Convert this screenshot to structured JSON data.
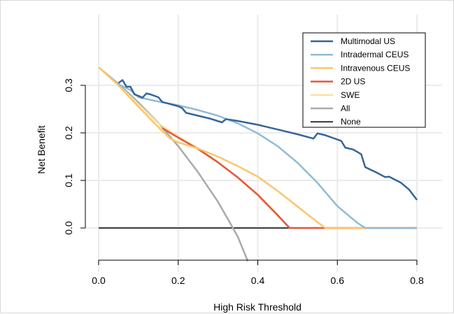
{
  "chart_data": {
    "type": "line",
    "title": "",
    "xlabel": "High Risk Threshold",
    "ylabel": "Net Benefit",
    "xlim": [
      0.0,
      0.8
    ],
    "ylim": [
      -0.07,
      0.34
    ],
    "xticks": [
      "0.0",
      "0.2",
      "0.4",
      "0.6",
      "0.8"
    ],
    "yticks": [
      "0.0",
      "0.1",
      "0.2",
      "0.3"
    ],
    "grid": true,
    "legend_position": "top-right",
    "series": [
      {
        "name": "Multimodal US",
        "color": "#35659a",
        "points": [
          [
            0.05,
            0.305
          ],
          [
            0.06,
            0.311
          ],
          [
            0.07,
            0.297
          ],
          [
            0.08,
            0.297
          ],
          [
            0.09,
            0.281
          ],
          [
            0.1,
            0.278
          ],
          [
            0.11,
            0.274
          ],
          [
            0.12,
            0.283
          ],
          [
            0.13,
            0.281
          ],
          [
            0.15,
            0.275
          ],
          [
            0.16,
            0.265
          ],
          [
            0.2,
            0.256
          ],
          [
            0.21,
            0.252
          ],
          [
            0.22,
            0.242
          ],
          [
            0.26,
            0.234
          ],
          [
            0.28,
            0.23
          ],
          [
            0.31,
            0.222
          ],
          [
            0.32,
            0.229
          ],
          [
            0.35,
            0.225
          ],
          [
            0.4,
            0.217
          ],
          [
            0.45,
            0.207
          ],
          [
            0.5,
            0.197
          ],
          [
            0.54,
            0.188
          ],
          [
            0.55,
            0.199
          ],
          [
            0.57,
            0.195
          ],
          [
            0.6,
            0.186
          ],
          [
            0.61,
            0.183
          ],
          [
            0.62,
            0.169
          ],
          [
            0.64,
            0.165
          ],
          [
            0.66,
            0.155
          ],
          [
            0.67,
            0.128
          ],
          [
            0.7,
            0.116
          ],
          [
            0.72,
            0.107
          ],
          [
            0.73,
            0.108
          ],
          [
            0.76,
            0.095
          ],
          [
            0.78,
            0.081
          ],
          [
            0.8,
            0.059
          ]
        ]
      },
      {
        "name": "Intradermal CEUS",
        "color": "#8fbcd6",
        "points": [
          [
            0.05,
            0.302
          ],
          [
            0.08,
            0.29
          ],
          [
            0.1,
            0.275
          ],
          [
            0.15,
            0.266
          ],
          [
            0.2,
            0.258
          ],
          [
            0.25,
            0.248
          ],
          [
            0.3,
            0.236
          ],
          [
            0.35,
            0.22
          ],
          [
            0.4,
            0.199
          ],
          [
            0.45,
            0.172
          ],
          [
            0.5,
            0.137
          ],
          [
            0.55,
            0.095
          ],
          [
            0.6,
            0.046
          ],
          [
            0.65,
            0.011
          ],
          [
            0.67,
            0.0
          ],
          [
            0.8,
            0.0
          ]
        ]
      },
      {
        "name": "Intravenous CEUS",
        "color": "#fbc66b",
        "points": [
          [
            0.0,
            0.338
          ],
          [
            0.05,
            0.3
          ],
          [
            0.1,
            0.255
          ],
          [
            0.15,
            0.212
          ],
          [
            0.18,
            0.188
          ],
          [
            0.2,
            0.18
          ],
          [
            0.25,
            0.167
          ],
          [
            0.3,
            0.15
          ],
          [
            0.35,
            0.13
          ],
          [
            0.4,
            0.108
          ],
          [
            0.45,
            0.078
          ],
          [
            0.5,
            0.045
          ],
          [
            0.55,
            0.012
          ],
          [
            0.57,
            0.0
          ],
          [
            0.8,
            0.0
          ]
        ]
      },
      {
        "name": "2D US",
        "color": "#e2583f",
        "points": [
          [
            0.16,
            0.21
          ],
          [
            0.2,
            0.19
          ],
          [
            0.25,
            0.166
          ],
          [
            0.3,
            0.138
          ],
          [
            0.35,
            0.106
          ],
          [
            0.4,
            0.07
          ],
          [
            0.45,
            0.027
          ],
          [
            0.48,
            0.0
          ],
          [
            0.8,
            0.0
          ]
        ]
      },
      {
        "name": "SWE",
        "color": "#fde0a2",
        "points": [
          [
            0.0,
            0.338
          ],
          [
            0.05,
            0.3
          ],
          [
            0.1,
            0.26
          ],
          [
            0.15,
            0.22
          ],
          [
            0.2,
            0.193
          ],
          [
            0.25,
            0.168
          ],
          [
            0.3,
            0.139
          ],
          [
            0.35,
            0.106
          ],
          [
            0.4,
            0.068
          ],
          [
            0.45,
            0.025
          ],
          [
            0.48,
            0.0
          ],
          [
            0.8,
            0.0
          ]
        ]
      },
      {
        "name": "All",
        "color": "#aaaaaa",
        "points": [
          [
            0.0,
            0.338
          ],
          [
            0.05,
            0.303
          ],
          [
            0.1,
            0.264
          ],
          [
            0.15,
            0.221
          ],
          [
            0.2,
            0.172
          ],
          [
            0.25,
            0.117
          ],
          [
            0.3,
            0.055
          ],
          [
            0.33,
            0.011
          ],
          [
            0.35,
            -0.019
          ],
          [
            0.375,
            -0.07
          ]
        ]
      },
      {
        "name": "None",
        "color": "#000000",
        "points": [
          [
            0.0,
            0.0
          ],
          [
            0.48,
            0.0
          ]
        ]
      }
    ]
  }
}
